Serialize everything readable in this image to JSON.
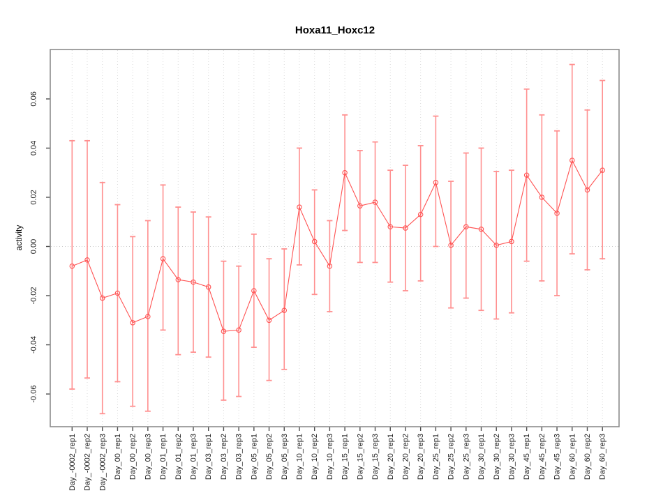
{
  "chart_data": {
    "type": "line",
    "title": "Hoxa11_Hoxc12",
    "xlabel": "",
    "ylabel": "activity",
    "grid": "vertical-dotted-per-category, dotted-zero-line",
    "legend": "none",
    "marker": "open-circle",
    "error_bars": true,
    "ylim": [
      -0.0733,
      0.0801
    ],
    "yticks": [
      -0.06,
      -0.04,
      -0.02,
      0.0,
      0.02,
      0.04,
      0.06
    ],
    "ytick_labels": [
      "-0.06",
      "-0.04",
      "-0.02",
      "0.00",
      "0.02",
      "0.04",
      "0.06"
    ],
    "categories": [
      "Day_-0002_rep1",
      "Day_-0002_rep2",
      "Day_-0002_rep3",
      "Day_00_rep1",
      "Day_00_rep2",
      "Day_00_rep3",
      "Day_01_rep1",
      "Day_01_rep2",
      "Day_01_rep3",
      "Day_03_rep1",
      "Day_03_rep2",
      "Day_03_rep3",
      "Day_05_rep1",
      "Day_05_rep2",
      "Day_05_rep3",
      "Day_10_rep1",
      "Day_10_rep2",
      "Day_10_rep3",
      "Day_15_rep1",
      "Day_15_rep2",
      "Day_15_rep3",
      "Day_20_rep1",
      "Day_20_rep2",
      "Day_20_rep3",
      "Day_25_rep1",
      "Day_25_rep2",
      "Day_25_rep3",
      "Day_30_rep1",
      "Day_30_rep2",
      "Day_30_rep3",
      "Day_45_rep1",
      "Day_45_rep2",
      "Day_45_rep3",
      "Day_60_rep1",
      "Day_60_rep2",
      "Day_60_rep3"
    ],
    "series": [
      {
        "name": "activity",
        "values": [
          -0.008,
          -0.0055,
          -0.021,
          -0.019,
          -0.031,
          -0.0285,
          -0.005,
          -0.0135,
          -0.0145,
          -0.0165,
          -0.0345,
          -0.034,
          -0.018,
          -0.03,
          -0.026,
          0.016,
          0.002,
          -0.008,
          0.03,
          0.0165,
          0.018,
          0.008,
          0.0075,
          0.013,
          0.026,
          0.0005,
          0.008,
          0.007,
          0.0005,
          0.002,
          0.029,
          0.02,
          0.0135,
          0.035,
          0.023,
          0.031
        ],
        "error_high": [
          0.043,
          0.043,
          0.026,
          0.017,
          0.004,
          0.0105,
          0.025,
          0.016,
          0.014,
          0.012,
          -0.006,
          -0.008,
          0.005,
          -0.005,
          -0.001,
          0.04,
          0.023,
          0.0105,
          0.0535,
          0.039,
          0.0425,
          0.031,
          0.033,
          0.041,
          0.053,
          0.0265,
          0.038,
          0.04,
          0.0305,
          0.031,
          0.064,
          0.0535,
          0.047,
          0.074,
          0.0555,
          0.0675
        ],
        "error_low": [
          -0.058,
          -0.0535,
          -0.068,
          -0.055,
          -0.065,
          -0.067,
          -0.034,
          -0.044,
          -0.043,
          -0.045,
          -0.0625,
          -0.061,
          -0.041,
          -0.0545,
          -0.05,
          -0.0075,
          -0.0195,
          -0.0265,
          0.0065,
          -0.0065,
          -0.0065,
          -0.0145,
          -0.018,
          -0.014,
          0.0,
          -0.025,
          -0.021,
          -0.026,
          -0.0295,
          -0.027,
          -0.006,
          -0.014,
          -0.02,
          -0.003,
          -0.0095,
          -0.005
        ]
      }
    ],
    "colors": {
      "line": "#ff5252",
      "marker_stroke": "#ff5252",
      "error_bar": "#ff9090",
      "gridline": "#d9d9d9",
      "zero_line": "#c9c9c9",
      "plot_border": "#8c8c8c",
      "tick": "#4d4d4d",
      "text": "#000000",
      "background": "#ffffff"
    }
  }
}
